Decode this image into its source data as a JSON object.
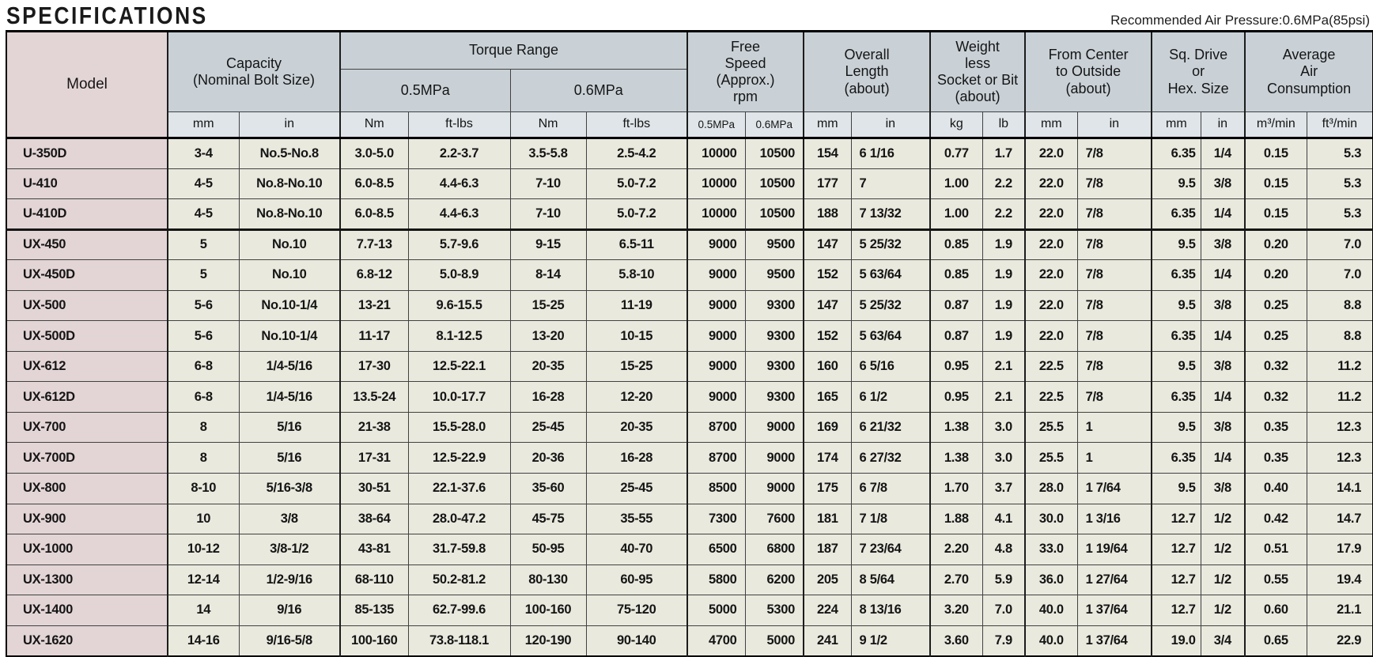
{
  "header": {
    "title": "SPECIFICATIONS",
    "note": "Recommended Air Pressure:0.6MPa(85psi)"
  },
  "table": {
    "groups": {
      "model": "Model",
      "capacity": "Capacity\n(Nominal Bolt Size)",
      "torque": "Torque Range",
      "torque_05": "0.5MPa",
      "torque_06": "0.6MPa",
      "free_speed": "Free\nSpeed\n(Approx.)\nrpm",
      "overall_length": "Overall\nLength\n(about)",
      "weight": "Weight\nless\nSocket or Bit\n(about)",
      "from_center": "From Center\nto Outside\n(about)",
      "sq_drive": "Sq. Drive\nor\nHex. Size",
      "air": "Average\nAir\nConsumption"
    },
    "units": [
      "mm",
      "in",
      "Nm",
      "ft-lbs",
      "Nm",
      "ft-lbs",
      "0.5MPa",
      "0.6MPa",
      "mm",
      "in",
      "kg",
      "lb",
      "mm",
      "in",
      "mm",
      "in",
      "m³/min",
      "ft³/min"
    ],
    "rows": [
      {
        "model": "U-350D",
        "cells": [
          "3-4",
          "No.5-No.8",
          "3.0-5.0",
          "2.2-3.7",
          "3.5-5.8",
          "2.5-4.2",
          "10000",
          "10500",
          "154",
          "6 1/16",
          "0.77",
          "1.7",
          "22.0",
          "7/8",
          "6.35",
          "1/4",
          "0.15",
          "5.3"
        ]
      },
      {
        "model": "U-410",
        "cells": [
          "4-5",
          "No.8-No.10",
          "6.0-8.5",
          "4.4-6.3",
          "7-10",
          "5.0-7.2",
          "10000",
          "10500",
          "177",
          "7",
          "1.00",
          "2.2",
          "22.0",
          "7/8",
          "9.5",
          "3/8",
          "0.15",
          "5.3"
        ]
      },
      {
        "model": "U-410D",
        "rule_below": true,
        "cells": [
          "4-5",
          "No.8-No.10",
          "6.0-8.5",
          "4.4-6.3",
          "7-10",
          "5.0-7.2",
          "10000",
          "10500",
          "188",
          "7 13/32",
          "1.00",
          "2.2",
          "22.0",
          "7/8",
          "6.35",
          "1/4",
          "0.15",
          "5.3"
        ]
      },
      {
        "model": "UX-450",
        "cells": [
          "5",
          "No.10",
          "7.7-13",
          "5.7-9.6",
          "9-15",
          "6.5-11",
          "9000",
          "9500",
          "147",
          "5 25/32",
          "0.85",
          "1.9",
          "22.0",
          "7/8",
          "9.5",
          "3/8",
          "0.20",
          "7.0"
        ]
      },
      {
        "model": "UX-450D",
        "cells": [
          "5",
          "No.10",
          "6.8-12",
          "5.0-8.9",
          "8-14",
          "5.8-10",
          "9000",
          "9500",
          "152",
          "5 63/64",
          "0.85",
          "1.9",
          "22.0",
          "7/8",
          "6.35",
          "1/4",
          "0.20",
          "7.0"
        ]
      },
      {
        "model": "UX-500",
        "cells": [
          "5-6",
          "No.10-1/4",
          "13-21",
          "9.6-15.5",
          "15-25",
          "11-19",
          "9000",
          "9300",
          "147",
          "5 25/32",
          "0.87",
          "1.9",
          "22.0",
          "7/8",
          "9.5",
          "3/8",
          "0.25",
          "8.8"
        ]
      },
      {
        "model": "UX-500D",
        "cells": [
          "5-6",
          "No.10-1/4",
          "11-17",
          "8.1-12.5",
          "13-20",
          "10-15",
          "9000",
          "9300",
          "152",
          "5 63/64",
          "0.87",
          "1.9",
          "22.0",
          "7/8",
          "6.35",
          "1/4",
          "0.25",
          "8.8"
        ]
      },
      {
        "model": "UX-612",
        "cells": [
          "6-8",
          "1/4-5/16",
          "17-30",
          "12.5-22.1",
          "20-35",
          "15-25",
          "9000",
          "9300",
          "160",
          "6 5/16",
          "0.95",
          "2.1",
          "22.5",
          "7/8",
          "9.5",
          "3/8",
          "0.32",
          "11.2"
        ]
      },
      {
        "model": "UX-612D",
        "cells": [
          "6-8",
          "1/4-5/16",
          "13.5-24",
          "10.0-17.7",
          "16-28",
          "12-20",
          "9000",
          "9300",
          "165",
          "6 1/2",
          "0.95",
          "2.1",
          "22.5",
          "7/8",
          "6.35",
          "1/4",
          "0.32",
          "11.2"
        ]
      },
      {
        "model": "UX-700",
        "cells": [
          "8",
          "5/16",
          "21-38",
          "15.5-28.0",
          "25-45",
          "20-35",
          "8700",
          "9000",
          "169",
          "6 21/32",
          "1.38",
          "3.0",
          "25.5",
          "1",
          "9.5",
          "3/8",
          "0.35",
          "12.3"
        ]
      },
      {
        "model": "UX-700D",
        "cells": [
          "8",
          "5/16",
          "17-31",
          "12.5-22.9",
          "20-36",
          "16-28",
          "8700",
          "9000",
          "174",
          "6 27/32",
          "1.38",
          "3.0",
          "25.5",
          "1",
          "6.35",
          "1/4",
          "0.35",
          "12.3"
        ]
      },
      {
        "model": "UX-800",
        "cells": [
          "8-10",
          "5/16-3/8",
          "30-51",
          "22.1-37.6",
          "35-60",
          "25-45",
          "8500",
          "9000",
          "175",
          "6 7/8",
          "1.70",
          "3.7",
          "28.0",
          "1 7/64",
          "9.5",
          "3/8",
          "0.40",
          "14.1"
        ]
      },
      {
        "model": "UX-900",
        "cells": [
          "10",
          "3/8",
          "38-64",
          "28.0-47.2",
          "45-75",
          "35-55",
          "7300",
          "7600",
          "181",
          "7 1/8",
          "1.88",
          "4.1",
          "30.0",
          "1 3/16",
          "12.7",
          "1/2",
          "0.42",
          "14.7"
        ]
      },
      {
        "model": "UX-1000",
        "cells": [
          "10-12",
          "3/8-1/2",
          "43-81",
          "31.7-59.8",
          "50-95",
          "40-70",
          "6500",
          "6800",
          "187",
          "7 23/64",
          "2.20",
          "4.8",
          "33.0",
          "1 19/64",
          "12.7",
          "1/2",
          "0.51",
          "17.9"
        ]
      },
      {
        "model": "UX-1300",
        "cells": [
          "12-14",
          "1/2-9/16",
          "68-110",
          "50.2-81.2",
          "80-130",
          "60-95",
          "5800",
          "6200",
          "205",
          "8 5/64",
          "2.70",
          "5.9",
          "36.0",
          "1 27/64",
          "12.7",
          "1/2",
          "0.55",
          "19.4"
        ]
      },
      {
        "model": "UX-1400",
        "cells": [
          "14",
          "9/16",
          "85-135",
          "62.7-99.6",
          "100-160",
          "75-120",
          "5000",
          "5300",
          "224",
          "8 13/16",
          "3.20",
          "7.0",
          "40.0",
          "1 37/64",
          "12.7",
          "1/2",
          "0.60",
          "21.1"
        ]
      },
      {
        "model": "UX-1620",
        "cells": [
          "14-16",
          "9/16-5/8",
          "100-160",
          "73.8-118.1",
          "120-190",
          "90-140",
          "4700",
          "5000",
          "241",
          "9 1/2",
          "3.60",
          "7.9",
          "40.0",
          "1 37/64",
          "19.0",
          "3/4",
          "0.65",
          "22.9"
        ]
      }
    ]
  }
}
